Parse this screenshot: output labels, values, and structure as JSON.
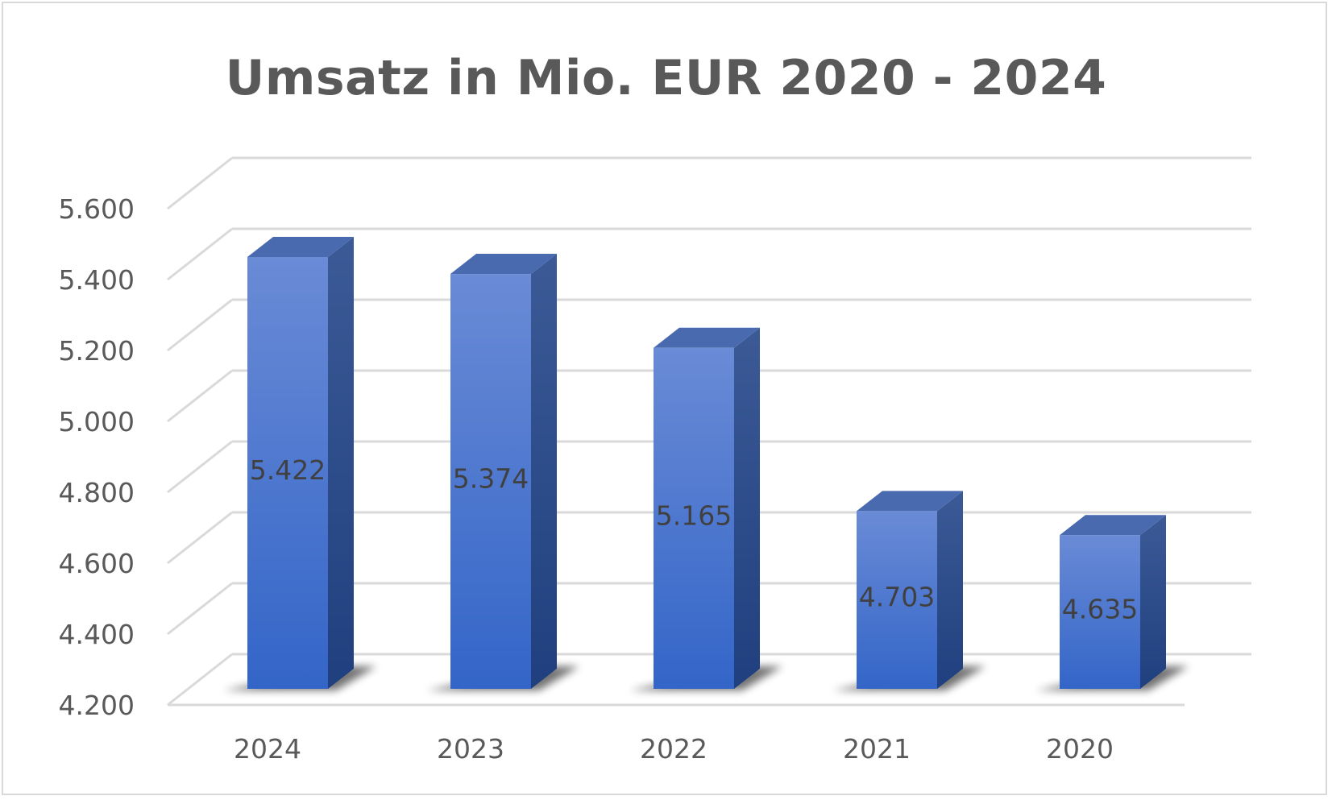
{
  "chart_data": {
    "type": "bar",
    "style": "3d-column",
    "title": "Umsatz in Mio. EUR 2020 - 2024",
    "categories": [
      "2024",
      "2023",
      "2022",
      "2021",
      "2020"
    ],
    "values": [
      5422,
      5374,
      5165,
      4703,
      4635
    ],
    "value_labels": [
      "5.422",
      "5.374",
      "5.165",
      "4.703",
      "4.635"
    ],
    "ylim": [
      4200,
      5600
    ],
    "y_ticks": [
      4200,
      4400,
      4600,
      4800,
      5000,
      5200,
      5400,
      5600
    ],
    "y_tick_labels": [
      "4.200",
      "4.400",
      "4.600",
      "4.800",
      "5.000",
      "5.200",
      "5.400",
      "5.600"
    ],
    "xlabel": "",
    "ylabel": "",
    "grid": true,
    "legend": "none"
  },
  "colors": {
    "bar_front_top": "#6a8bd6",
    "bar_front_bottom": "#3365c8",
    "bar_side_top": "#3b5a96",
    "bar_side_bottom": "#1f3f7e",
    "bar_top": "#4a6ab0",
    "grid": "#d9d9d9",
    "text": "#595959",
    "data_text": "#404040",
    "frame": "#d9d9d9"
  }
}
